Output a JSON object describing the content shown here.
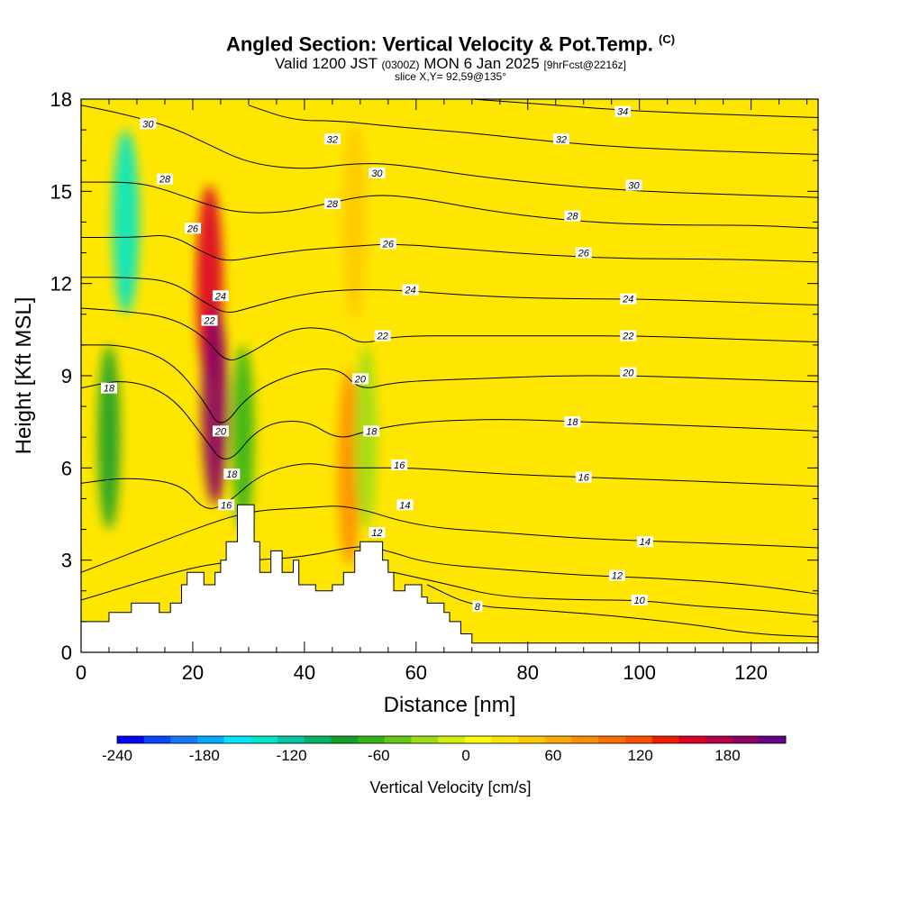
{
  "title": "Angled Section: Vertical Velocity & Pot.Temp.",
  "title_mark": "(C)",
  "subtitle": {
    "valid": "Valid 1200 JST",
    "zulu": "(0300Z)",
    "date": "MON 6 Jan 2025",
    "forecast": "[9hrFcst@2216z]"
  },
  "slice_info": "slice X,Y= 92,59@135°",
  "chart_data": {
    "type": "heatmap",
    "description_series": "vertical velocity shading with potential temperature contours",
    "xlabel": "Distance [nm]",
    "ylabel": "Height [Kft MSL]",
    "xlim": [
      0,
      132
    ],
    "ylim": [
      0,
      18
    ],
    "x_ticks": [
      0,
      20,
      40,
      60,
      80,
      100,
      120
    ],
    "y_ticks": [
      0,
      3,
      6,
      9,
      12,
      15,
      18
    ],
    "colorbar": {
      "label": "Vertical Velocity [cm/s]",
      "min": -240,
      "max": 220,
      "tick_values": [
        -240,
        -180,
        -120,
        -60,
        0,
        60,
        120,
        180
      ],
      "colors": [
        "#0000ff",
        "#0a46ff",
        "#1478ff",
        "#00aaff",
        "#00e6ff",
        "#00e6c8",
        "#00c8a0",
        "#00b464",
        "#14a028",
        "#32b414",
        "#64c814",
        "#a0dc14",
        "#d2f00a",
        "#ffff00",
        "#ffe600",
        "#ffc800",
        "#ffaa00",
        "#ff8c00",
        "#ff6e00",
        "#ff5000",
        "#f01e00",
        "#dc0028",
        "#b40046",
        "#8c0064",
        "#640082"
      ]
    },
    "terrain_profile": [
      [
        0,
        1
      ],
      [
        5,
        1
      ],
      [
        5,
        1.3
      ],
      [
        9,
        1.3
      ],
      [
        9,
        1.6
      ],
      [
        14,
        1.6
      ],
      [
        14,
        1.3
      ],
      [
        16,
        1.3
      ],
      [
        16,
        1.6
      ],
      [
        18,
        1.6
      ],
      [
        18,
        2.2
      ],
      [
        19,
        2.2
      ],
      [
        19,
        2.6
      ],
      [
        22,
        2.6
      ],
      [
        22,
        2.2
      ],
      [
        24,
        2.2
      ],
      [
        24,
        2.6
      ],
      [
        25,
        2.6
      ],
      [
        25,
        3.0
      ],
      [
        26,
        3.0
      ],
      [
        26,
        3.6
      ],
      [
        28,
        3.6
      ],
      [
        28,
        4.8
      ],
      [
        31,
        4.8
      ],
      [
        31,
        3.6
      ],
      [
        32,
        3.6
      ],
      [
        32,
        2.6
      ],
      [
        34,
        2.6
      ],
      [
        34,
        3.3
      ],
      [
        36,
        3.3
      ],
      [
        36,
        2.6
      ],
      [
        38,
        2.6
      ],
      [
        38,
        3.0
      ],
      [
        39,
        3.0
      ],
      [
        39,
        2.2
      ],
      [
        42,
        2.2
      ],
      [
        42,
        2.0
      ],
      [
        45,
        2.0
      ],
      [
        45,
        2.2
      ],
      [
        47,
        2.2
      ],
      [
        47,
        2.6
      ],
      [
        49,
        2.6
      ],
      [
        49,
        3.3
      ],
      [
        50,
        3.3
      ],
      [
        50,
        3.6
      ],
      [
        54,
        3.6
      ],
      [
        54,
        3.0
      ],
      [
        55,
        3.0
      ],
      [
        55,
        2.6
      ],
      [
        56,
        2.6
      ],
      [
        56,
        2.0
      ],
      [
        58,
        2.0
      ],
      [
        58,
        2.2
      ],
      [
        61,
        2.2
      ],
      [
        61,
        1.8
      ],
      [
        62,
        1.8
      ],
      [
        62,
        1.6
      ],
      [
        65,
        1.6
      ],
      [
        65,
        1.3
      ],
      [
        66,
        1.3
      ],
      [
        66,
        1.0
      ],
      [
        68,
        1.0
      ],
      [
        68,
        0.6
      ],
      [
        70,
        0.6
      ],
      [
        70,
        0.3
      ],
      [
        132,
        0.3
      ]
    ],
    "vv_features": [
      {
        "x": 8,
        "y": 14,
        "value": -140,
        "kind": "downdraft"
      },
      {
        "x": 5,
        "y": 7,
        "value": -90,
        "kind": "downdraft"
      },
      {
        "x": 23,
        "y": 12,
        "value": 150,
        "kind": "updraft"
      },
      {
        "x": 24,
        "y": 8,
        "value": 200,
        "kind": "updraft"
      },
      {
        "x": 29,
        "y": 7,
        "value": -70,
        "kind": "downdraft"
      },
      {
        "x": 48,
        "y": 6,
        "value": 90,
        "kind": "updraft"
      },
      {
        "x": 51,
        "y": 7,
        "value": -30,
        "kind": "downdraft"
      },
      {
        "x": 49,
        "y": 14,
        "value": 50,
        "kind": "updraft"
      },
      {
        "x": 16,
        "y": 14,
        "value": 30,
        "kind": "updraft"
      }
    ],
    "isentropes": [
      {
        "theta": 8,
        "points": [
          [
            62,
            2.2
          ],
          [
            70,
            1.5
          ],
          [
            80,
            1.4
          ],
          [
            95,
            1.2
          ],
          [
            110,
            0.9
          ],
          [
            120,
            0.6
          ],
          [
            132,
            0.5
          ]
        ]
      },
      {
        "theta": 10,
        "points": [
          [
            56,
            2.6
          ],
          [
            66,
            2.2
          ],
          [
            75,
            1.8
          ],
          [
            90,
            1.7
          ],
          [
            100,
            1.7
          ],
          [
            110,
            1.5
          ],
          [
            120,
            1.4
          ],
          [
            132,
            1.2
          ]
        ]
      },
      {
        "theta": 12,
        "points": [
          [
            0,
            1.7
          ],
          [
            20,
            2.8
          ],
          [
            30,
            3.0
          ],
          [
            40,
            3.1
          ],
          [
            50,
            3.5
          ],
          [
            55,
            3.3
          ],
          [
            62,
            2.9
          ],
          [
            75,
            2.7
          ],
          [
            90,
            2.5
          ],
          [
            105,
            2.4
          ],
          [
            120,
            2.2
          ],
          [
            132,
            1.9
          ]
        ]
      },
      {
        "theta": 14,
        "points": [
          [
            0,
            2.6
          ],
          [
            20,
            4.0
          ],
          [
            30,
            4.6
          ],
          [
            40,
            4.7
          ],
          [
            48,
            4.8
          ],
          [
            60,
            4.1
          ],
          [
            75,
            3.9
          ],
          [
            90,
            3.7
          ],
          [
            105,
            3.6
          ],
          [
            120,
            3.5
          ],
          [
            132,
            3.4
          ]
        ]
      },
      {
        "theta": 16,
        "points": [
          [
            0,
            5.5
          ],
          [
            8,
            5.7
          ],
          [
            18,
            5.5
          ],
          [
            22,
            4.6
          ],
          [
            26,
            4.8
          ],
          [
            32,
            5.8
          ],
          [
            40,
            6.2
          ],
          [
            46,
            6.0
          ],
          [
            50,
            6.0
          ],
          [
            60,
            6.0
          ],
          [
            75,
            5.8
          ],
          [
            90,
            5.7
          ],
          [
            105,
            5.6
          ],
          [
            120,
            5.5
          ],
          [
            132,
            5.4
          ]
        ]
      },
      {
        "theta": 18,
        "points": [
          [
            0,
            8.6
          ],
          [
            8,
            8.9
          ],
          [
            16,
            8.4
          ],
          [
            22,
            7.0
          ],
          [
            26,
            6.0
          ],
          [
            32,
            7.4
          ],
          [
            40,
            7.6
          ],
          [
            46,
            6.9
          ],
          [
            51,
            7.2
          ],
          [
            60,
            7.5
          ],
          [
            75,
            7.6
          ],
          [
            90,
            7.5
          ],
          [
            105,
            7.4
          ],
          [
            120,
            7.3
          ],
          [
            132,
            7.2
          ]
        ]
      },
      {
        "theta": 20,
        "points": [
          [
            0,
            10.0
          ],
          [
            8,
            10.0
          ],
          [
            16,
            9.5
          ],
          [
            22,
            8.2
          ],
          [
            25,
            7.2
          ],
          [
            30,
            8.4
          ],
          [
            38,
            9.1
          ],
          [
            46,
            9.3
          ],
          [
            50,
            8.5
          ],
          [
            56,
            8.8
          ],
          [
            70,
            8.9
          ],
          [
            85,
            9.0
          ],
          [
            100,
            9.0
          ],
          [
            115,
            8.9
          ],
          [
            132,
            8.8
          ]
        ]
      },
      {
        "theta": 22,
        "points": [
          [
            0,
            11.2
          ],
          [
            8,
            11.1
          ],
          [
            16,
            10.9
          ],
          [
            22,
            10.3
          ],
          [
            26,
            9.4
          ],
          [
            30,
            9.7
          ],
          [
            38,
            10.6
          ],
          [
            46,
            10.5
          ],
          [
            50,
            10.0
          ],
          [
            56,
            10.3
          ],
          [
            70,
            10.3
          ],
          [
            85,
            10.3
          ],
          [
            100,
            10.3
          ],
          [
            115,
            10.2
          ],
          [
            132,
            10.1
          ]
        ]
      },
      {
        "theta": 24,
        "points": [
          [
            0,
            12.2
          ],
          [
            8,
            12.2
          ],
          [
            16,
            12.1
          ],
          [
            22,
            11.4
          ],
          [
            26,
            11.0
          ],
          [
            30,
            11.2
          ],
          [
            38,
            11.6
          ],
          [
            46,
            11.8
          ],
          [
            56,
            11.8
          ],
          [
            70,
            11.6
          ],
          [
            85,
            11.5
          ],
          [
            100,
            11.5
          ],
          [
            115,
            11.4
          ],
          [
            132,
            11.3
          ]
        ]
      },
      {
        "theta": 26,
        "points": [
          [
            0,
            13.5
          ],
          [
            10,
            13.5
          ],
          [
            16,
            13.6
          ],
          [
            22,
            13.0
          ],
          [
            26,
            12.7
          ],
          [
            32,
            12.9
          ],
          [
            40,
            13.1
          ],
          [
            48,
            13.2
          ],
          [
            56,
            13.3
          ],
          [
            70,
            13.1
          ],
          [
            85,
            12.9
          ],
          [
            100,
            12.8
          ],
          [
            115,
            12.8
          ],
          [
            132,
            12.7
          ]
        ]
      },
      {
        "theta": 28,
        "points": [
          [
            0,
            15.3
          ],
          [
            10,
            15.3
          ],
          [
            16,
            15.0
          ],
          [
            22,
            14.6
          ],
          [
            28,
            14.3
          ],
          [
            36,
            14.3
          ],
          [
            44,
            14.6
          ],
          [
            52,
            14.9
          ],
          [
            60,
            14.8
          ],
          [
            75,
            14.3
          ],
          [
            90,
            14.0
          ],
          [
            105,
            13.9
          ],
          [
            120,
            13.9
          ],
          [
            132,
            13.8
          ]
        ]
      },
      {
        "theta": 30,
        "points": [
          [
            0,
            17.8
          ],
          [
            8,
            17.5
          ],
          [
            16,
            17.1
          ],
          [
            22,
            16.6
          ],
          [
            30,
            15.9
          ],
          [
            40,
            15.7
          ],
          [
            48,
            15.9
          ],
          [
            56,
            15.9
          ],
          [
            70,
            15.5
          ],
          [
            85,
            15.2
          ],
          [
            100,
            15.0
          ],
          [
            115,
            14.9
          ],
          [
            132,
            14.8
          ]
        ]
      },
      {
        "theta": 32,
        "points": [
          [
            30,
            17.8
          ],
          [
            38,
            17.3
          ],
          [
            46,
            17.3
          ],
          [
            56,
            17.1
          ],
          [
            70,
            16.9
          ],
          [
            85,
            16.6
          ],
          [
            100,
            16.4
          ],
          [
            115,
            16.3
          ],
          [
            132,
            16.2
          ]
        ]
      },
      {
        "theta": 34,
        "points": [
          [
            70,
            18.0
          ],
          [
            85,
            17.8
          ],
          [
            100,
            17.6
          ],
          [
            115,
            17.5
          ],
          [
            132,
            17.4
          ]
        ]
      }
    ],
    "contour_labels": [
      {
        "text": "30",
        "x": 12,
        "y": 17.2
      },
      {
        "text": "32",
        "x": 45,
        "y": 16.7
      },
      {
        "text": "32",
        "x": 86,
        "y": 16.7
      },
      {
        "text": "34",
        "x": 97,
        "y": 17.6
      },
      {
        "text": "28",
        "x": 15,
        "y": 15.4
      },
      {
        "text": "30",
        "x": 53,
        "y": 15.6
      },
      {
        "text": "30",
        "x": 99,
        "y": 15.2
      },
      {
        "text": "26",
        "x": 20,
        "y": 13.8
      },
      {
        "text": "28",
        "x": 45,
        "y": 14.6
      },
      {
        "text": "28",
        "x": 88,
        "y": 14.2
      },
      {
        "text": "26",
        "x": 55,
        "y": 13.3
      },
      {
        "text": "26",
        "x": 90,
        "y": 13.0
      },
      {
        "text": "24",
        "x": 25,
        "y": 11.6
      },
      {
        "text": "24",
        "x": 59,
        "y": 11.8
      },
      {
        "text": "24",
        "x": 98,
        "y": 11.5
      },
      {
        "text": "22",
        "x": 23,
        "y": 10.8
      },
      {
        "text": "22",
        "x": 54,
        "y": 10.3
      },
      {
        "text": "22",
        "x": 98,
        "y": 10.3
      },
      {
        "text": "20",
        "x": 50,
        "y": 8.9
      },
      {
        "text": "20",
        "x": 98,
        "y": 9.1
      },
      {
        "text": "20",
        "x": 25,
        "y": 7.2
      },
      {
        "text": "18",
        "x": 5,
        "y": 8.6
      },
      {
        "text": "18",
        "x": 52,
        "y": 7.2
      },
      {
        "text": "18",
        "x": 88,
        "y": 7.5
      },
      {
        "text": "18",
        "x": 27,
        "y": 5.8
      },
      {
        "text": "16",
        "x": 57,
        "y": 6.1
      },
      {
        "text": "16",
        "x": 90,
        "y": 5.7
      },
      {
        "text": "16",
        "x": 26,
        "y": 4.8
      },
      {
        "text": "14",
        "x": 58,
        "y": 4.8
      },
      {
        "text": "14",
        "x": 101,
        "y": 3.6
      },
      {
        "text": "12",
        "x": 53,
        "y": 3.9
      },
      {
        "text": "12",
        "x": 96,
        "y": 2.5
      },
      {
        "text": "10",
        "x": 100,
        "y": 1.7
      },
      {
        "text": "8",
        "x": 71,
        "y": 1.5
      }
    ]
  }
}
